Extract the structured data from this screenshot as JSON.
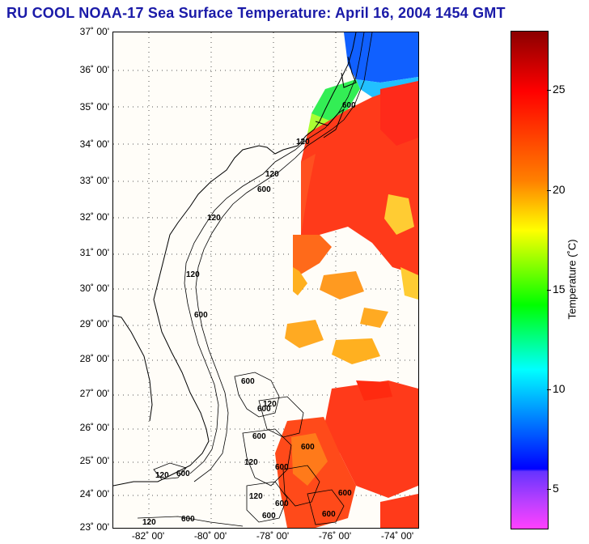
{
  "title": "RU COOL  NOAA-17  Sea Surface Temperature:  April 16, 2004 1454 GMT",
  "lat_labels": [
    "37˚ 00'",
    "36˚ 00'",
    "35˚ 00'",
    "34˚ 00'",
    "33˚ 00'",
    "32˚ 00'",
    "31˚ 00'",
    "30˚ 00'",
    "29˚ 00'",
    "28˚ 00'",
    "27˚ 00'",
    "26˚ 00'",
    "25˚ 00'",
    "24˚ 00'",
    "23˚ 00'"
  ],
  "lon_labels": [
    "-82˚ 00'",
    "-80˚ 00'",
    "-78˚ 00'",
    "-76˚ 00'",
    "-74˚ 00'"
  ],
  "contour_labels": [
    "600",
    "120",
    "120",
    "600",
    "120",
    "120",
    "600",
    "600",
    "120",
    "600",
    "600",
    "600",
    "120",
    "600",
    "120",
    "600",
    "600",
    "600",
    "120",
    "600",
    "120",
    "600",
    "600"
  ],
  "colorbar": {
    "title": "Temperature (˚C)",
    "ticks": [
      "25",
      "20",
      "15",
      "10",
      "5"
    ],
    "colors": [
      "#8b0000",
      "#ff0000",
      "#ff8000",
      "#ffff00",
      "#00ff00",
      "#00ffff",
      "#0000ff",
      "#8000ff",
      "#ff40ff"
    ]
  },
  "colors": {
    "title": "#1a1aa8",
    "warm_water": "#ff3a1a",
    "cool_water": "#33ee55",
    "cold_water": "#1060ff"
  }
}
